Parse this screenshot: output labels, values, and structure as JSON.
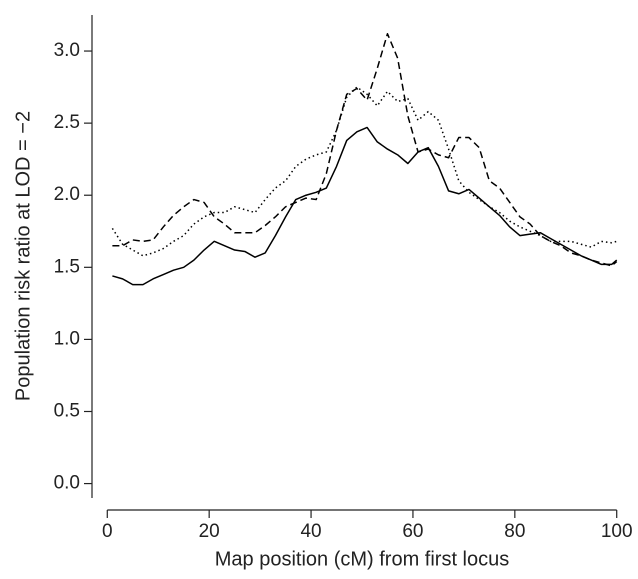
{
  "chart_data": {
    "type": "line",
    "xlabel": "Map position (cM) from first locus",
    "ylabel": "Population risk ratio at LOD = −2",
    "x": [
      1,
      3,
      5,
      7,
      9,
      11,
      13,
      15,
      17,
      19,
      21,
      23,
      25,
      27,
      29,
      31,
      33,
      35,
      37,
      39,
      41,
      43,
      45,
      47,
      49,
      51,
      53,
      55,
      57,
      59,
      61,
      63,
      65,
      67,
      69,
      71,
      73,
      75,
      77,
      79,
      81,
      83,
      85,
      87,
      89,
      91,
      93,
      95,
      97,
      99,
      100
    ],
    "series": [
      {
        "color": "#000000",
        "dash": "solid",
        "values": [
          1.44,
          1.42,
          1.38,
          1.38,
          1.42,
          1.45,
          1.48,
          1.5,
          1.55,
          1.62,
          1.68,
          1.65,
          1.62,
          1.61,
          1.57,
          1.6,
          1.72,
          1.85,
          1.97,
          2.0,
          2.02,
          2.05,
          2.2,
          2.38,
          2.44,
          2.47,
          2.37,
          2.32,
          2.28,
          2.22,
          2.3,
          2.33,
          2.2,
          2.03,
          2.01,
          2.04,
          1.98,
          1.92,
          1.86,
          1.78,
          1.72,
          1.73,
          1.74,
          1.7,
          1.66,
          1.62,
          1.58,
          1.55,
          1.52,
          1.52,
          1.55
        ]
      },
      {
        "color": "#000000",
        "dash": "dashed",
        "values": [
          1.65,
          1.65,
          1.69,
          1.68,
          1.69,
          1.78,
          1.86,
          1.92,
          1.97,
          1.95,
          1.85,
          1.8,
          1.74,
          1.74,
          1.74,
          1.79,
          1.85,
          1.92,
          1.95,
          1.98,
          1.97,
          2.15,
          2.45,
          2.7,
          2.74,
          2.66,
          2.88,
          3.12,
          2.95,
          2.55,
          2.3,
          2.32,
          2.28,
          2.26,
          2.4,
          2.4,
          2.33,
          2.1,
          2.05,
          1.95,
          1.85,
          1.8,
          1.72,
          1.68,
          1.65,
          1.6,
          1.58,
          1.55,
          1.53,
          1.51,
          1.54
        ]
      },
      {
        "color": "#000000",
        "dash": "dotted",
        "values": [
          1.77,
          1.66,
          1.62,
          1.58,
          1.6,
          1.63,
          1.68,
          1.72,
          1.8,
          1.85,
          1.88,
          1.88,
          1.92,
          1.9,
          1.88,
          1.97,
          2.05,
          2.1,
          2.2,
          2.25,
          2.28,
          2.3,
          2.45,
          2.68,
          2.75,
          2.7,
          2.62,
          2.72,
          2.65,
          2.67,
          2.52,
          2.58,
          2.52,
          2.32,
          2.1,
          2.02,
          1.97,
          1.92,
          1.88,
          1.82,
          1.78,
          1.75,
          1.72,
          1.68,
          1.68,
          1.68,
          1.66,
          1.64,
          1.68,
          1.67,
          1.68
        ]
      }
    ],
    "xlim": [
      -3,
      103
    ],
    "xticks": [
      0,
      20,
      40,
      60,
      80,
      100
    ],
    "ylim": [
      -0.1,
      3.25
    ],
    "yticks": [
      {
        "value": 0,
        "label": "0.0"
      },
      0.5,
      {
        "value": 1,
        "label": "1.0"
      },
      1.5,
      {
        "value": 2,
        "label": "2.0"
      },
      2.5,
      {
        "value": 3,
        "label": "3.0"
      }
    ],
    "grid": false
  }
}
